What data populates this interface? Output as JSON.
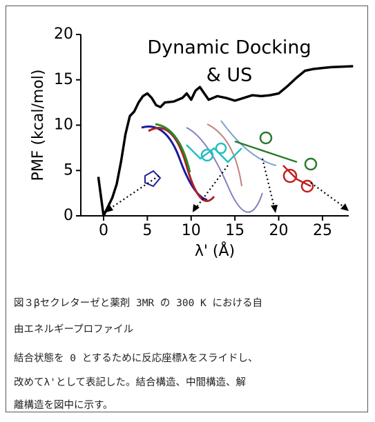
{
  "chart_data": {
    "type": "line",
    "title": [
      "Dynamic Docking",
      "& US"
    ],
    "x_label": "λ' (Å)",
    "y_label": "PMF (kcal/mol)",
    "x": [
      -0.6,
      0,
      0.5,
      1,
      1.5,
      2,
      2.5,
      3,
      3.5,
      4,
      4.5,
      5,
      5.5,
      6,
      6.5,
      7,
      8,
      9,
      9.5,
      10,
      10.5,
      11,
      11.5,
      12,
      13,
      14,
      15,
      16,
      17,
      18,
      19,
      20,
      21,
      22,
      23,
      24,
      25,
      26,
      28.5
    ],
    "series": [
      {
        "color": "#000000",
        "values": [
          4.3,
          0,
          1,
          2,
          3.5,
          6,
          9,
          11,
          11.5,
          12.5,
          13.2,
          13.5,
          13,
          12.2,
          12,
          12.5,
          12.6,
          13,
          13.5,
          12.8,
          13.8,
          14.2,
          13.5,
          12.8,
          13.2,
          13,
          12.7,
          13,
          13.3,
          13.2,
          13.3,
          13.5,
          14.3,
          15.2,
          16,
          16.2,
          16.3,
          16.4,
          16.5
        ]
      }
    ],
    "xlim": [
      -2.6,
      28
    ],
    "ylim": [
      0,
      20
    ],
    "xticks": [
      0,
      5,
      10,
      15,
      20,
      25
    ],
    "yticks": [
      0,
      5,
      10,
      15,
      20
    ],
    "grid": false
  },
  "caption": [
    "図３βセクレターゼと薬剤 3MR の 300 K における自",
    "由エネルギープロファイル"
  ],
  "body": [
    "結合状態を 0 とするために反応座標λをスライドし、",
    "改めてλ'として表記した。結合構造、中間構造、解",
    "離構造を図中に示す。"
  ]
}
